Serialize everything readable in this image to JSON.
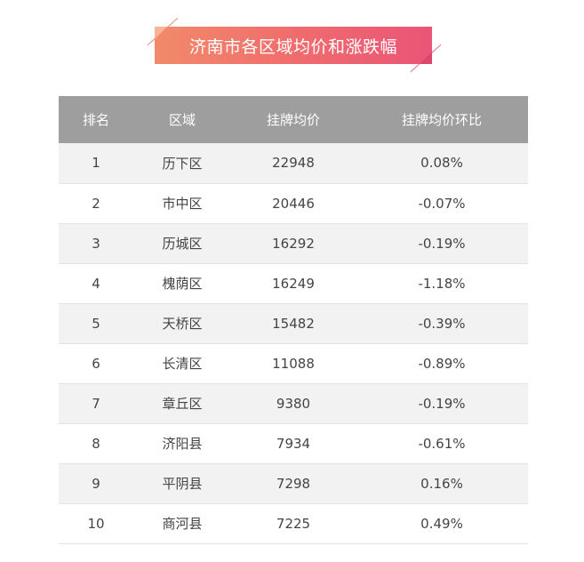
{
  "title": "济南市各区域均价和涨跌幅",
  "table": {
    "headers": [
      "排名",
      "区域",
      "挂牌均价",
      "挂牌均价环比"
    ],
    "rows": [
      {
        "rank": "1",
        "area": "历下区",
        "price": "22948",
        "change": "0.08%"
      },
      {
        "rank": "2",
        "area": "市中区",
        "price": "20446",
        "change": "-0.07%"
      },
      {
        "rank": "3",
        "area": "历城区",
        "price": "16292",
        "change": "-0.19%"
      },
      {
        "rank": "4",
        "area": "槐荫区",
        "price": "16249",
        "change": "-1.18%"
      },
      {
        "rank": "5",
        "area": "天桥区",
        "price": "15482",
        "change": "-0.39%"
      },
      {
        "rank": "6",
        "area": "长清区",
        "price": "11088",
        "change": "-0.89%"
      },
      {
        "rank": "7",
        "area": "章丘区",
        "price": "9380",
        "change": "-0.19%"
      },
      {
        "rank": "8",
        "area": "济阳县",
        "price": "7934",
        "change": "-0.61%"
      },
      {
        "rank": "9",
        "area": "平阴县",
        "price": "7298",
        "change": "0.16%"
      },
      {
        "rank": "10",
        "area": "商河县",
        "price": "7225",
        "change": "0.49%"
      }
    ]
  },
  "colors": {
    "banner_start": "#f28a6a",
    "banner_end": "#ea5577",
    "header_bg": "#9e9e9e",
    "row_alt_bg": "#f2f2f2"
  }
}
